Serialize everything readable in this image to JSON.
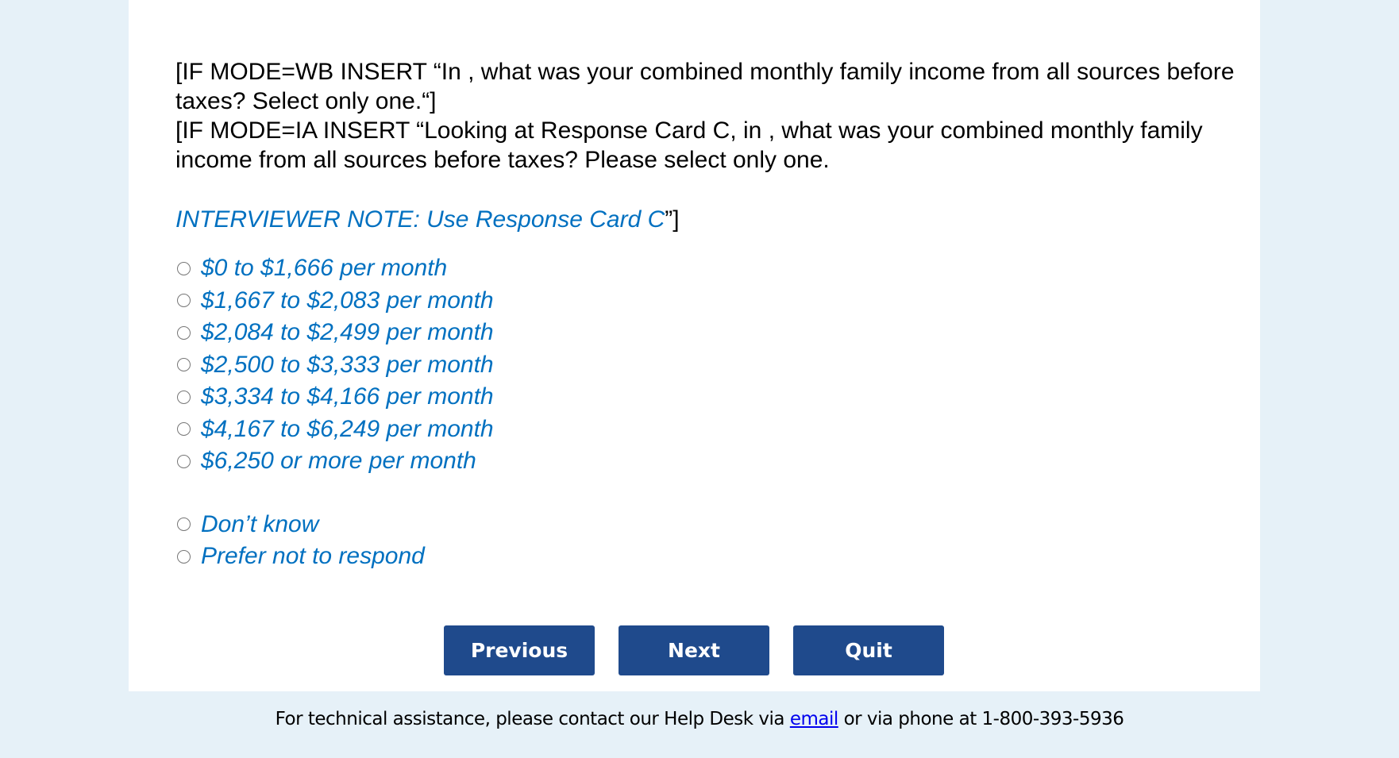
{
  "question": {
    "line1": "[IF MODE=WB INSERT “In , what was your combined monthly family income from all sources before taxes? Select only one.“]",
    "line2": "[IF MODE=IA INSERT “Looking at Response Card C, in , what was your combined monthly family income from all sources before taxes? Please select only one.",
    "note": "INTERVIEWER NOTE: Use Response Card C",
    "note_tail": "”]"
  },
  "options": [
    {
      "label": "$0 to $1,666 per month",
      "selected": false
    },
    {
      "label": "$1,667 to $2,083 per month",
      "selected": false
    },
    {
      "label": "$2,084 to $2,499 per month",
      "selected": false
    },
    {
      "label": "$2,500 to $3,333 per month",
      "selected": false
    },
    {
      "label": "$3,334 to $4,166 per month",
      "selected": false
    },
    {
      "label": "$4,167 to $6,249 per month",
      "selected": false
    },
    {
      "label": "$6,250 or more per month",
      "selected": false
    },
    {
      "label": "Don’t know",
      "selected": false
    },
    {
      "label": "Prefer not to respond",
      "selected": false
    }
  ],
  "buttons": {
    "previous": "Previous",
    "next": "Next",
    "quit": "Quit"
  },
  "footer": {
    "prefix": "For technical assistance, please contact our Help Desk via",
    "link": "email",
    "suffix": "or via phone at 1-800-393-5936"
  },
  "colors": {
    "accent": "#0070c0",
    "button": "#1f4a8c",
    "background": "#e6f1f8"
  }
}
